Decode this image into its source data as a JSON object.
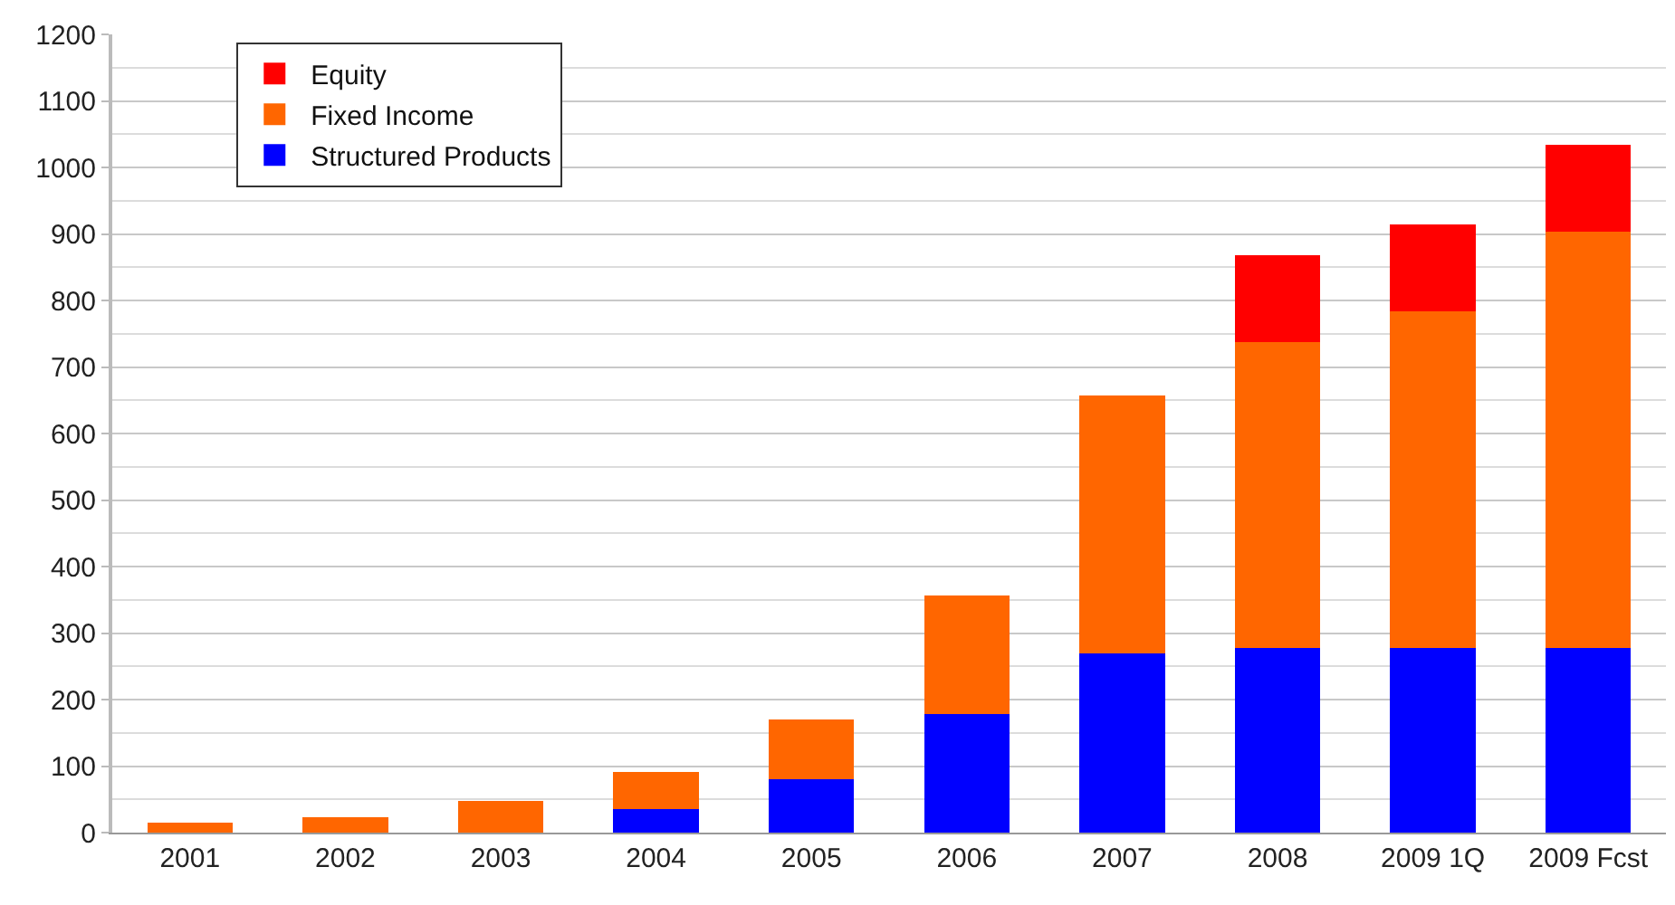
{
  "chart_data": {
    "type": "bar",
    "stacked": true,
    "categories": [
      "2001",
      "2002",
      "2003",
      "2004",
      "2005",
      "2006",
      "2007",
      "2008",
      "2009 1Q",
      "2009 Fcst"
    ],
    "series": [
      {
        "name": "Structured Products",
        "color": "#0000ff",
        "values": [
          0,
          0,
          0,
          36,
          80,
          178,
          270,
          278,
          278,
          278
        ]
      },
      {
        "name": "Fixed Income",
        "color": "#ff6600",
        "values": [
          15,
          23,
          48,
          55,
          90,
          179,
          387,
          459,
          506,
          626
        ]
      },
      {
        "name": "Equity",
        "color": "#ff0000",
        "values": [
          0,
          0,
          0,
          0,
          0,
          0,
          0,
          131,
          130,
          130
        ]
      }
    ],
    "ylim": [
      0,
      1200
    ],
    "yticks": [
      0,
      100,
      200,
      300,
      400,
      500,
      600,
      700,
      800,
      900,
      1000,
      1100,
      1200
    ],
    "grid": "y",
    "legend": "top left"
  }
}
